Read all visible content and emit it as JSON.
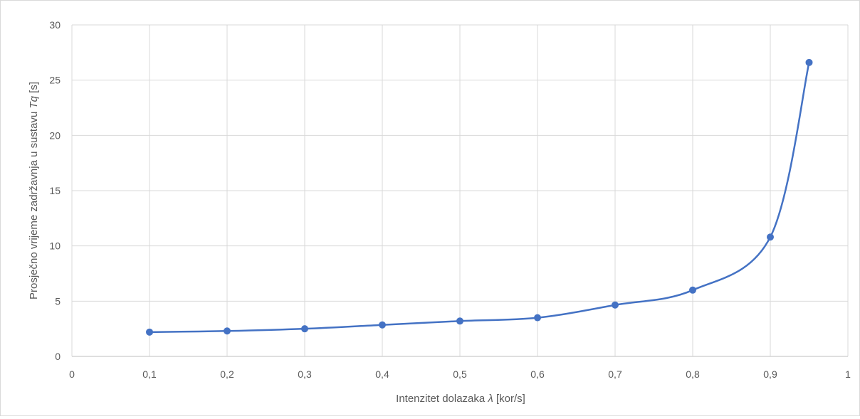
{
  "chart_data": {
    "type": "scatter",
    "xlabel_prefix": "Intenzitet dolazaka ",
    "xlabel_symbol": "λ",
    "xlabel_suffix": " [kor/s]",
    "ylabel_prefix": "Prosječno vrijeme zadržavnja u sustavu ",
    "ylabel_symbol": "Tq",
    "ylabel_suffix": " [s]",
    "xlim": [
      0,
      1
    ],
    "ylim": [
      0,
      30
    ],
    "xticks": [
      "0",
      "0,1",
      "0,2",
      "0,3",
      "0,4",
      "0,5",
      "0,6",
      "0,7",
      "0,8",
      "0,9",
      "1"
    ],
    "yticks": [
      "0",
      "5",
      "10",
      "15",
      "20",
      "25",
      "30"
    ],
    "grid": true,
    "line_color": "#4472c4",
    "series": [
      {
        "x": [
          0.1,
          0.2,
          0.3,
          0.4,
          0.5,
          0.6,
          0.7,
          0.8,
          0.9,
          0.95
        ],
        "y": [
          2.2,
          2.3,
          2.5,
          2.85,
          3.2,
          3.5,
          4.65,
          6.0,
          10.8,
          26.6
        ]
      }
    ]
  }
}
